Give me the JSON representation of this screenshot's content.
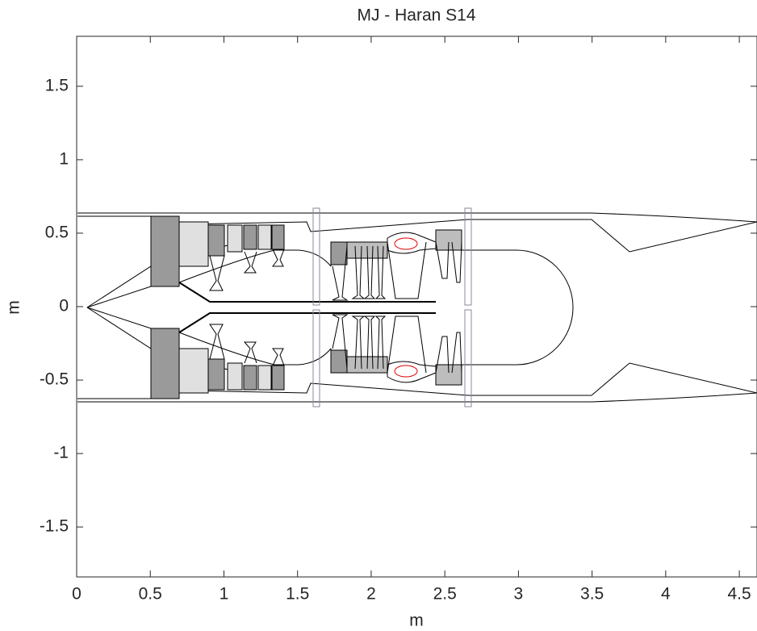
{
  "chart_data": {
    "type": "line",
    "title": "MJ - Haran S14",
    "xlabel": "m",
    "ylabel": "m",
    "xlim": [
      0,
      4.62
    ],
    "ylim": [
      -1.84,
      1.84
    ],
    "xticks": [
      0,
      0.5,
      1,
      1.5,
      2,
      2.5,
      3,
      3.5,
      4,
      4.5
    ],
    "yticks": [
      -1.5,
      -1,
      -0.5,
      0,
      0.5,
      1,
      1.5
    ]
  }
}
